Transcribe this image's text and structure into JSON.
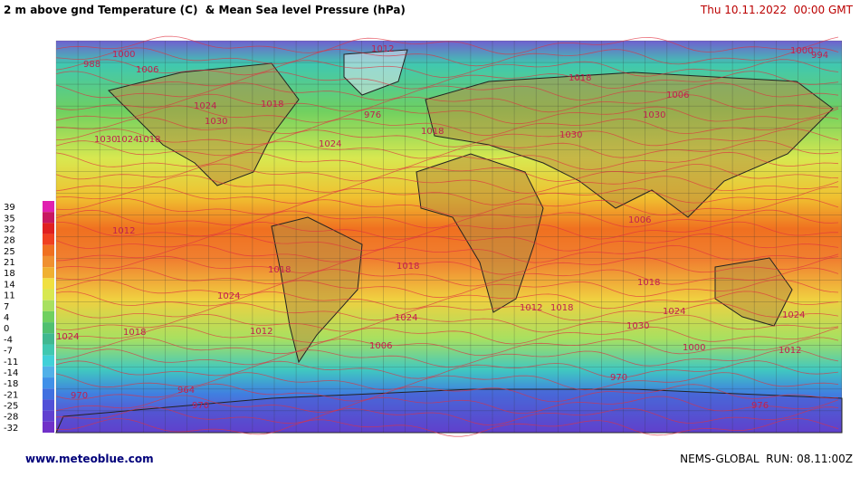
{
  "header": {
    "title": "2 m above gnd Temperature (C)  & Mean Sea level Pressure (hPa)",
    "date": "Thu 10.11.2022  00:00 GMT"
  },
  "legend": {
    "values": [
      39,
      35,
      32,
      28,
      25,
      21,
      18,
      14,
      11,
      7,
      4,
      0,
      -4,
      -7,
      -11,
      -14,
      -18,
      -21,
      -25,
      -28,
      -32
    ],
    "colors": [
      "#e020b0",
      "#c81860",
      "#e02020",
      "#f04020",
      "#f07020",
      "#f09030",
      "#f0b030",
      "#f0e040",
      "#d8e850",
      "#a8e060",
      "#70d060",
      "#50c070",
      "#40b890",
      "#40c8b0",
      "#40d0d8",
      "#50b0e8",
      "#4090e8",
      "#4070e0",
      "#5050d8",
      "#6040d0",
      "#7030c8"
    ]
  },
  "isobar_labels": [
    1000,
    988,
    1006,
    1012,
    1018,
    1000,
    994,
    1024,
    1018,
    976,
    1030,
    1030,
    1024,
    1018,
    1024,
    1018,
    1030,
    1030,
    1006,
    1012,
    1018,
    1018,
    1024,
    1018,
    1024,
    1012,
    1018,
    1024,
    1030,
    1018,
    1012,
    1024,
    1006,
    1000,
    970,
    964,
    970,
    970,
    1006,
    1024,
    1012,
    976
  ],
  "footer": {
    "site": "www.meteoblue.com",
    "run": "NEMS-GLOBAL  RUN: 08.11:00Z"
  }
}
